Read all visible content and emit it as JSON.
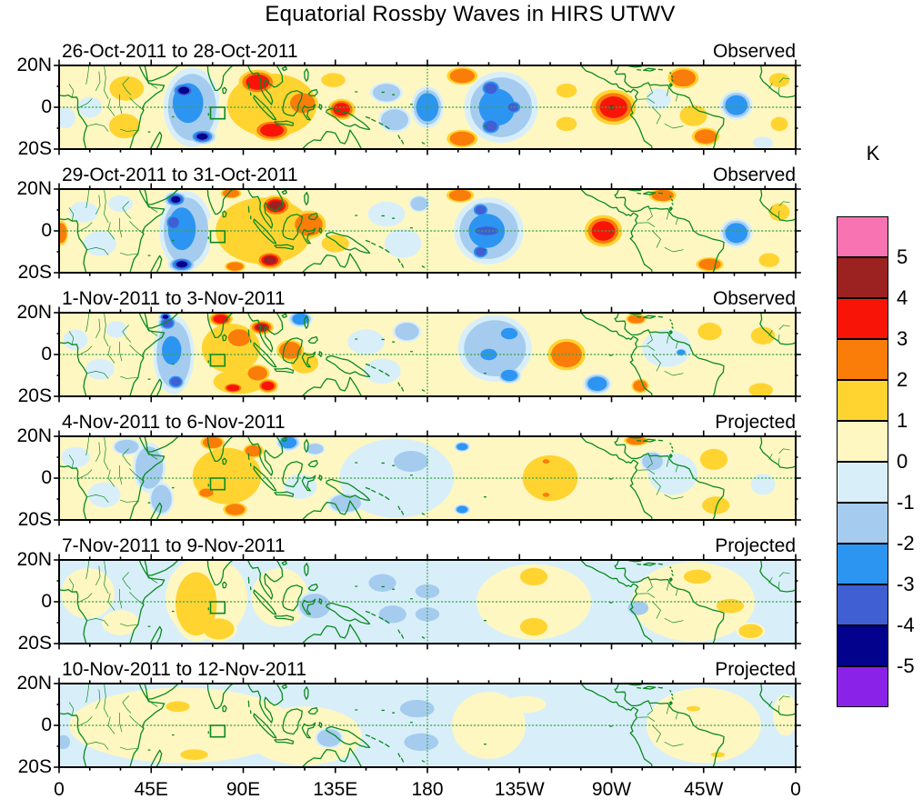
{
  "title": "Equatorial Rossby Waves in HIRS UTWV",
  "colorbar": {
    "unit": "K",
    "tick_labels": [
      "5",
      "4",
      "3",
      "2",
      "1",
      "0",
      "-1",
      "-2",
      "-3",
      "-4",
      "-5"
    ],
    "cell_colors_top_to_bottom": [
      "#F873B2",
      "#9C2121",
      "#F91408",
      "#FB7D09",
      "#FFD431",
      "#FEF7C2",
      "#D8EFFA",
      "#A5CCEF",
      "#2C95F2",
      "#3F5FD3",
      "#02028C",
      "#8B22E8"
    ]
  },
  "axes": {
    "x_ticks": [
      {
        "label": "0",
        "lon": 0
      },
      {
        "label": "45E",
        "lon": 45
      },
      {
        "label": "90E",
        "lon": 90
      },
      {
        "label": "135E",
        "lon": 135
      },
      {
        "label": "180",
        "lon": 180
      },
      {
        "label": "135W",
        "lon": 225
      },
      {
        "label": "90W",
        "lon": 270
      },
      {
        "label": "45W",
        "lon": 315
      },
      {
        "label": "0",
        "lon": 360
      }
    ],
    "y_tick_labels": [
      "20N",
      "0",
      "20S"
    ]
  },
  "map": {
    "coast_color": "#0B8A1F",
    "grid_color": "#3FA34D",
    "roi_box": {
      "lon_min": 74,
      "lon_max": 81,
      "lat_min": -5.5,
      "lat_max": 0
    }
  },
  "chart_data": {
    "type": "heatmap",
    "description": "Six 3-day-mean longitude-latitude contour maps (0-360E, 20S-20N) of upper-troposphere water vapor brightness-temperature anomalies (K); warm colors positive, cool colors negative. Top three panels observed, bottom three projected.",
    "units": "K",
    "lon_range": [
      0,
      360
    ],
    "lat_range": [
      -20,
      20
    ],
    "contour_levels": [
      -5,
      -4,
      -3,
      -2,
      -1,
      0,
      1,
      2,
      3,
      4,
      5
    ],
    "positive_band_colors": [
      "#FEF7C2",
      "#FFD431",
      "#FB7D09",
      "#F91408",
      "#9C2121",
      "#F873B2"
    ],
    "negative_band_colors": [
      "#D8EFFA",
      "#A5CCEF",
      "#2C95F2",
      "#3F5FD3",
      "#02028C",
      "#8B22E8"
    ],
    "anomaly_format": [
      "lon_deg_east",
      "lat_deg",
      "rx_deg",
      "ry_deg",
      "peak_band_K_signed"
    ],
    "panels": [
      {
        "date_range": "26-Oct-2011 to 28-Oct-2011",
        "source": "Observed",
        "base": "positive",
        "anomalies": [
          [
            33,
            9,
            10,
            7,
            1
          ],
          [
            32,
            -9,
            9,
            7,
            1
          ],
          [
            15,
            0,
            6,
            5,
            -0.5
          ],
          [
            3,
            -5,
            5,
            5,
            -0.5
          ],
          [
            65,
            0,
            14,
            19,
            -1
          ],
          [
            63,
            2,
            11,
            14,
            -2
          ],
          [
            61,
            8,
            7,
            4.5,
            -4
          ],
          [
            70,
            -14,
            7,
            4,
            -4
          ],
          [
            104,
            1,
            26,
            18,
            1
          ],
          [
            97,
            12,
            11,
            7,
            3
          ],
          [
            104,
            -11,
            11,
            6,
            3
          ],
          [
            119,
            2,
            9,
            7,
            2
          ],
          [
            138,
            -1,
            8,
            6,
            3
          ],
          [
            134,
            13,
            7,
            4,
            1
          ],
          [
            160,
            7,
            8,
            5,
            -1
          ],
          [
            164,
            -6,
            8,
            6,
            -1
          ],
          [
            180,
            0,
            8,
            10,
            -2
          ],
          [
            197,
            15,
            9,
            5,
            2
          ],
          [
            197,
            -15,
            9,
            5,
            2
          ],
          [
            216,
            0,
            18,
            17,
            -1
          ],
          [
            214,
            0,
            13,
            13,
            -2
          ],
          [
            211,
            9,
            6,
            5,
            -3
          ],
          [
            211,
            -9,
            6,
            5,
            -3
          ],
          [
            222,
            0,
            5,
            4,
            -3
          ],
          [
            248,
            8,
            6,
            4,
            1
          ],
          [
            248,
            -8,
            6,
            4,
            1
          ],
          [
            271,
            0,
            13,
            10,
            3
          ],
          [
            270,
            0,
            4,
            3,
            4
          ],
          [
            305,
            14,
            9,
            6,
            2
          ],
          [
            316,
            -14,
            8,
            5,
            2
          ],
          [
            310,
            -4,
            8,
            6,
            1
          ],
          [
            293,
            4,
            6,
            5,
            -0.5
          ],
          [
            331,
            1,
            8,
            7,
            -2
          ],
          [
            352,
            13,
            6,
            4,
            1
          ],
          [
            352,
            -8,
            5,
            4,
            1
          ],
          [
            344,
            -17,
            5,
            3,
            -0.5
          ]
        ]
      },
      {
        "date_range": "29-Oct-2011 to 31-Oct-2011",
        "source": "Observed",
        "base": "positive",
        "anomalies": [
          [
            1,
            -1,
            4,
            7,
            2
          ],
          [
            12,
            9,
            7,
            5,
            -0.5
          ],
          [
            20,
            -6,
            8,
            6,
            -0.5
          ],
          [
            30,
            13,
            6,
            4,
            -0.5
          ],
          [
            62,
            0,
            13,
            19,
            -1
          ],
          [
            60,
            1,
            10,
            15,
            -2
          ],
          [
            57,
            15,
            6,
            4,
            -4
          ],
          [
            60,
            -16,
            7,
            4,
            -4
          ],
          [
            56,
            4,
            5,
            5,
            -3
          ],
          [
            100,
            0,
            28,
            19,
            1
          ],
          [
            84,
            18,
            6,
            3,
            2
          ],
          [
            86,
            -17,
            6,
            3,
            2
          ],
          [
            106,
            12,
            9,
            6,
            4
          ],
          [
            103,
            -14,
            8,
            5,
            4
          ],
          [
            122,
            3,
            10,
            8,
            2
          ],
          [
            135,
            -6,
            8,
            5,
            1
          ],
          [
            160,
            8,
            9,
            6,
            -0.5
          ],
          [
            168,
            -6,
            9,
            7,
            -0.5
          ],
          [
            176,
            13,
            5,
            4,
            -1
          ],
          [
            196,
            17,
            8,
            4,
            2
          ],
          [
            210,
            0,
            17,
            16,
            -1
          ],
          [
            209,
            0,
            13,
            12,
            -2
          ],
          [
            209,
            0,
            11,
            4,
            -3
          ],
          [
            206,
            10,
            5,
            4,
            -3
          ],
          [
            206,
            -10,
            5,
            4,
            -3
          ],
          [
            266,
            0,
            11,
            9,
            3
          ],
          [
            295,
            17,
            8,
            4,
            2
          ],
          [
            318,
            -16,
            8,
            4,
            2
          ],
          [
            331,
            -1,
            8,
            7,
            -2
          ],
          [
            352,
            9,
            6,
            5,
            1
          ],
          [
            347,
            -14,
            6,
            4,
            1
          ]
        ]
      },
      {
        "date_range": "1-Nov-2011 to 3-Nov-2011",
        "source": "Observed",
        "base": "positive",
        "anomalies": [
          [
            8,
            7,
            6,
            5,
            -0.5
          ],
          [
            20,
            -7,
            7,
            5,
            -0.5
          ],
          [
            28,
            12,
            5,
            4,
            -0.5
          ],
          [
            56,
            0,
            10,
            19,
            -1
          ],
          [
            55,
            2,
            7,
            10,
            -2
          ],
          [
            53,
            15,
            5,
            4,
            -3
          ],
          [
            57,
            -13,
            5,
            4,
            -3
          ],
          [
            52,
            18,
            3.5,
            2.5,
            -4
          ],
          [
            84,
            3,
            17,
            14,
            1
          ],
          [
            79,
            17,
            7,
            4,
            3
          ],
          [
            99,
            13,
            7,
            4,
            4
          ],
          [
            88,
            8,
            8,
            6,
            2
          ],
          [
            88,
            -13,
            15,
            7,
            1
          ],
          [
            85,
            -16,
            6,
            3,
            3
          ],
          [
            102,
            -15,
            6,
            4,
            3
          ],
          [
            97,
            -9,
            7,
            5,
            2
          ],
          [
            113,
            2,
            8,
            6,
            2
          ],
          [
            120,
            -4,
            8,
            6,
            1
          ],
          [
            118,
            17,
            6,
            4,
            -2
          ],
          [
            150,
            6,
            9,
            6,
            -0.5
          ],
          [
            158,
            -8,
            9,
            6,
            -0.5
          ],
          [
            170,
            11,
            7,
            5,
            -1
          ],
          [
            213,
            3,
            18,
            16,
            -1
          ],
          [
            220,
            10,
            6,
            4,
            -2
          ],
          [
            210,
            0,
            6,
            4,
            -2
          ],
          [
            220,
            -10,
            6,
            4,
            -2
          ],
          [
            248,
            0,
            11,
            9,
            2
          ],
          [
            282,
            17,
            6,
            3,
            2
          ],
          [
            284,
            -15,
            5,
            4,
            2
          ],
          [
            263,
            -14,
            7,
            5,
            -2
          ],
          [
            297,
            3,
            12,
            9,
            -0.5
          ],
          [
            304,
            1,
            3,
            2,
            -2
          ],
          [
            318,
            11,
            7,
            5,
            1
          ],
          [
            344,
            9,
            7,
            5,
            1
          ],
          [
            343,
            -17,
            7,
            4,
            1
          ]
        ]
      },
      {
        "date_range": "4-Nov-2011 to 6-Nov-2011",
        "source": "Projected",
        "base": "positive",
        "anomalies": [
          [
            8,
            10,
            7,
            5,
            -0.5
          ],
          [
            22,
            -8,
            8,
            6,
            -0.5
          ],
          [
            44,
            5,
            8,
            12,
            -1
          ],
          [
            33,
            15,
            7,
            4,
            -1
          ],
          [
            50,
            -10,
            6,
            8,
            -1
          ],
          [
            82,
            1,
            20,
            16,
            1
          ],
          [
            75,
            17,
            7,
            4,
            2
          ],
          [
            95,
            13,
            6,
            4,
            2
          ],
          [
            86,
            -15,
            7,
            4,
            2
          ],
          [
            72,
            -7,
            5,
            3,
            2
          ],
          [
            112,
            17,
            6,
            4,
            -2
          ],
          [
            125,
            14,
            5,
            3,
            -1
          ],
          [
            118,
            -4,
            8,
            6,
            -0.5
          ],
          [
            140,
            -12,
            9,
            5,
            -1
          ],
          [
            165,
            0,
            28,
            19,
            -0.5
          ],
          [
            172,
            8,
            10,
            6,
            -1
          ],
          [
            197,
            15,
            4,
            2.5,
            -2
          ],
          [
            197,
            -15,
            4,
            2.5,
            -2
          ],
          [
            240,
            0,
            16,
            13,
            1
          ],
          [
            238,
            8,
            2.5,
            1.5,
            2
          ],
          [
            238,
            -8,
            2.5,
            1.5,
            2
          ],
          [
            282,
            18,
            7,
            3,
            2
          ],
          [
            300,
            2,
            12,
            10,
            -0.5
          ],
          [
            290,
            8,
            6,
            5,
            -1
          ],
          [
            320,
            9,
            8,
            6,
            1
          ],
          [
            321,
            -13,
            8,
            5,
            1
          ],
          [
            344,
            -3,
            6,
            5,
            -0.5
          ]
        ]
      },
      {
        "date_range": "7-Nov-2011 to 9-Nov-2011",
        "source": "Projected",
        "base": "negative",
        "anomalies": [
          [
            14,
            4,
            13,
            12,
            0.5
          ],
          [
            30,
            -10,
            9,
            6,
            0.5
          ],
          [
            72,
            2,
            20,
            20,
            0.5
          ],
          [
            67,
            -1,
            12,
            18,
            1
          ],
          [
            78,
            -13,
            9,
            6,
            1
          ],
          [
            108,
            2,
            14,
            14,
            0.5
          ],
          [
            125,
            -2,
            9,
            7,
            -1
          ],
          [
            158,
            9,
            8,
            5,
            -1
          ],
          [
            163,
            -6,
            8,
            5,
            -1
          ],
          [
            180,
            5,
            7,
            4,
            -1
          ],
          [
            180,
            -6,
            7,
            4,
            -1
          ],
          [
            232,
            0,
            28,
            18,
            0.5
          ],
          [
            232,
            12,
            8,
            5,
            1
          ],
          [
            232,
            -12,
            8,
            5,
            1
          ],
          [
            283,
            -3,
            6,
            4,
            -1
          ],
          [
            310,
            0,
            30,
            19,
            0.5
          ],
          [
            312,
            12,
            8,
            4,
            1
          ],
          [
            328,
            -2,
            8,
            4,
            1
          ],
          [
            338,
            -14,
            7,
            4,
            1
          ]
        ]
      },
      {
        "date_range": "10-Nov-2011 to 12-Nov-2011",
        "source": "Projected",
        "base": "negative",
        "anomalies": [
          [
            60,
            0,
            55,
            18,
            0.5
          ],
          [
            120,
            -5,
            28,
            14,
            0.5
          ],
          [
            58,
            9,
            7,
            3,
            1
          ],
          [
            66,
            -14,
            8,
            3,
            1
          ],
          [
            2,
            -8,
            4,
            4,
            -1
          ],
          [
            132,
            -6,
            7,
            5,
            -1
          ],
          [
            175,
            8,
            10,
            5,
            -1
          ],
          [
            177,
            -8,
            10,
            5,
            -1
          ],
          [
            210,
            0,
            18,
            16,
            0.5
          ],
          [
            228,
            10,
            10,
            4,
            0.5
          ],
          [
            315,
            0,
            28,
            18,
            0.5
          ],
          [
            310,
            8,
            4,
            1.5,
            1
          ],
          [
            322,
            -14,
            4,
            1.5,
            1
          ],
          [
            355,
            5,
            6,
            10,
            0.5
          ]
        ]
      }
    ]
  }
}
